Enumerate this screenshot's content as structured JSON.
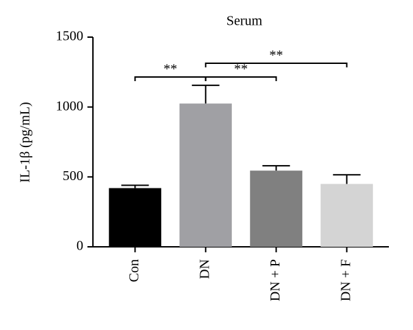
{
  "chart_data": {
    "type": "bar",
    "title": "Serum",
    "y_label": "IL-1β (pg/mL)",
    "categories": [
      "Con",
      "DN",
      "DN + P",
      "DN + F"
    ],
    "values": [
      420,
      1025,
      545,
      450
    ],
    "errors": [
      20,
      130,
      35,
      65
    ],
    "colors": [
      "#000000",
      "#a0a0a4",
      "#808080",
      "#d4d4d4"
    ],
    "ylim": [
      0,
      1500
    ],
    "yticks": [
      0,
      500,
      1000,
      1500
    ],
    "comparisons": [
      {
        "pair": [
          "Con",
          "DN"
        ],
        "label": "**"
      },
      {
        "pair": [
          "DN",
          "DN + P"
        ],
        "label": "**"
      },
      {
        "pair": [
          "DN",
          "DN + F"
        ],
        "label": "**"
      }
    ]
  }
}
